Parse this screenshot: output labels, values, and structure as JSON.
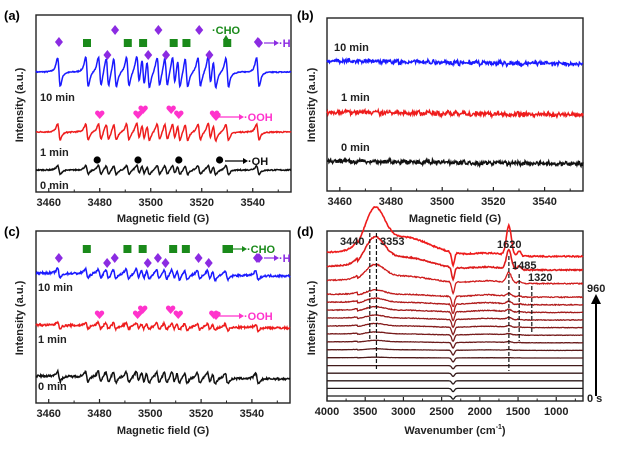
{
  "chart_data": [
    {
      "panel_label": "(a)",
      "type": "line",
      "xlabel": "Magnetic field (G)",
      "ylabel": "Intensity (a.u.)",
      "xlim": [
        3455,
        3555
      ],
      "xticks": [
        3460,
        3480,
        3500,
        3520,
        3540
      ],
      "series": [
        {
          "name": "10 min",
          "color": "#1a1aff",
          "amplitude": 1.0,
          "peaks": [
            3464,
            3475,
            3480,
            3483,
            3486,
            3491,
            3495,
            3497,
            3499,
            3503,
            3506,
            3509,
            3511,
            3514,
            3519,
            3523,
            3525,
            3530,
            3542
          ]
        },
        {
          "name": "1 min",
          "color": "#ee1c1c",
          "amplitude": 0.55,
          "peaks": [
            3464,
            3475,
            3480,
            3483,
            3486,
            3491,
            3495,
            3497,
            3499,
            3503,
            3506,
            3509,
            3511,
            3514,
            3519,
            3523,
            3525,
            3530,
            3542
          ]
        },
        {
          "name": "0 min",
          "color": "#111111",
          "amplitude": 0.3,
          "peaks": [
            3464,
            3475,
            3480,
            3483,
            3486,
            3491,
            3495,
            3497,
            3499,
            3503,
            3506,
            3509,
            3511,
            3514,
            3519,
            3523,
            3525,
            3530,
            3542
          ]
        }
      ],
      "markers": [
        {
          "species": "H",
          "label": "·H",
          "symbol": "diamond",
          "color": "#8b2be2",
          "positions": [
            3464,
            3483,
            3486,
            3499,
            3503,
            3506,
            3519,
            3523,
            3542
          ]
        },
        {
          "species": "CHO",
          "label": "·CHO",
          "symbol": "square",
          "color": "#1a8a1a",
          "positions": [
            3475,
            3491,
            3497,
            3509,
            3514,
            3530
          ]
        },
        {
          "species": "OOH",
          "label": "·OOH",
          "symbol": "heart",
          "color": "#ff33cc",
          "positions": [
            3480,
            3495,
            3497,
            3508,
            3511,
            3525
          ]
        },
        {
          "species": "OH",
          "label": "·OH",
          "symbol": "circle",
          "color": "#000000",
          "positions": [
            3479,
            3495,
            3511,
            3527
          ]
        }
      ]
    },
    {
      "panel_label": "(b)",
      "type": "line",
      "xlabel": "Magnetic field (G)",
      "ylabel": "Intensity (a.u.)",
      "xlim": [
        3455,
        3555
      ],
      "xticks": [
        3460,
        3480,
        3500,
        3520,
        3540
      ],
      "series": [
        {
          "name": "10 min",
          "color": "#1a1aff",
          "amplitude": 0.04
        },
        {
          "name": "1 min",
          "color": "#ee1c1c",
          "amplitude": 0.04
        },
        {
          "name": "0 min",
          "color": "#111111",
          "amplitude": 0.04
        }
      ]
    },
    {
      "panel_label": "(c)",
      "type": "line",
      "xlabel": "Magnetic field (G)",
      "ylabel": "Intensity (a.u.)",
      "xlim": [
        3455,
        3555
      ],
      "xticks": [
        3460,
        3480,
        3500,
        3520,
        3540
      ],
      "series": [
        {
          "name": "10 min",
          "color": "#1a1aff",
          "amplitude": 0.18
        },
        {
          "name": "1 min",
          "color": "#ee1c1c",
          "amplitude": 0.12
        },
        {
          "name": "0 min",
          "color": "#111111",
          "amplitude": 0.2
        }
      ],
      "markers": [
        {
          "species": "H",
          "label": "·H",
          "symbol": "diamond",
          "color": "#8b2be2",
          "positions": [
            3464,
            3483,
            3486,
            3499,
            3503,
            3506,
            3519,
            3523,
            3542
          ]
        },
        {
          "species": "CHO",
          "label": "·CHO",
          "symbol": "square",
          "color": "#1a8a1a",
          "positions": [
            3475,
            3491,
            3497,
            3509,
            3514,
            3530
          ]
        },
        {
          "species": "OOH",
          "label": "·OOH",
          "symbol": "heart",
          "color": "#ff33cc",
          "positions": [
            3480,
            3495,
            3497,
            3508,
            3511,
            3525
          ]
        }
      ]
    },
    {
      "panel_label": "(d)",
      "type": "line",
      "xlabel": "Wavenumber (cm⁻¹)",
      "ylabel": "Intensity (a.u.)",
      "xlim": [
        4000,
        650
      ],
      "xticks": [
        4000,
        3500,
        3000,
        2500,
        2000,
        1500,
        1000
      ],
      "time_start": "0 s",
      "time_end": "960",
      "n_traces": 17,
      "annotated_peaks": [
        {
          "label": "3440",
          "wavenumber": 3440
        },
        {
          "label": "3353",
          "wavenumber": 3353
        },
        {
          "label": "1620",
          "wavenumber": 1620
        },
        {
          "label": "1485",
          "wavenumber": 1485
        },
        {
          "label": "1320",
          "wavenumber": 1320
        }
      ],
      "color_start": "#1a1a1a",
      "color_end": "#ee1c1c"
    }
  ],
  "labels": {
    "panel_a": "(a)",
    "panel_b": "(b)",
    "panel_c": "(c)",
    "panel_d": "(d)",
    "t10": "10 min",
    "t1": "1 min",
    "t0": "0 min",
    "ylabel": "Intensity (a.u.)",
    "xlabel_field": "Magnetic field (G)",
    "xlabel_wave": "Wavenumber (cm",
    "xlabel_wave_sup": "-1",
    "xlabel_wave_close": ")",
    "h": "·H",
    "cho": "·CHO",
    "ooh": "·OOH",
    "oh": "·OH",
    "time_end": "960",
    "time_start": "0 s",
    "p3440": "3440",
    "p3353": "3353",
    "p1620": "1620",
    "p1485": "1485",
    "p1320": "1320"
  }
}
